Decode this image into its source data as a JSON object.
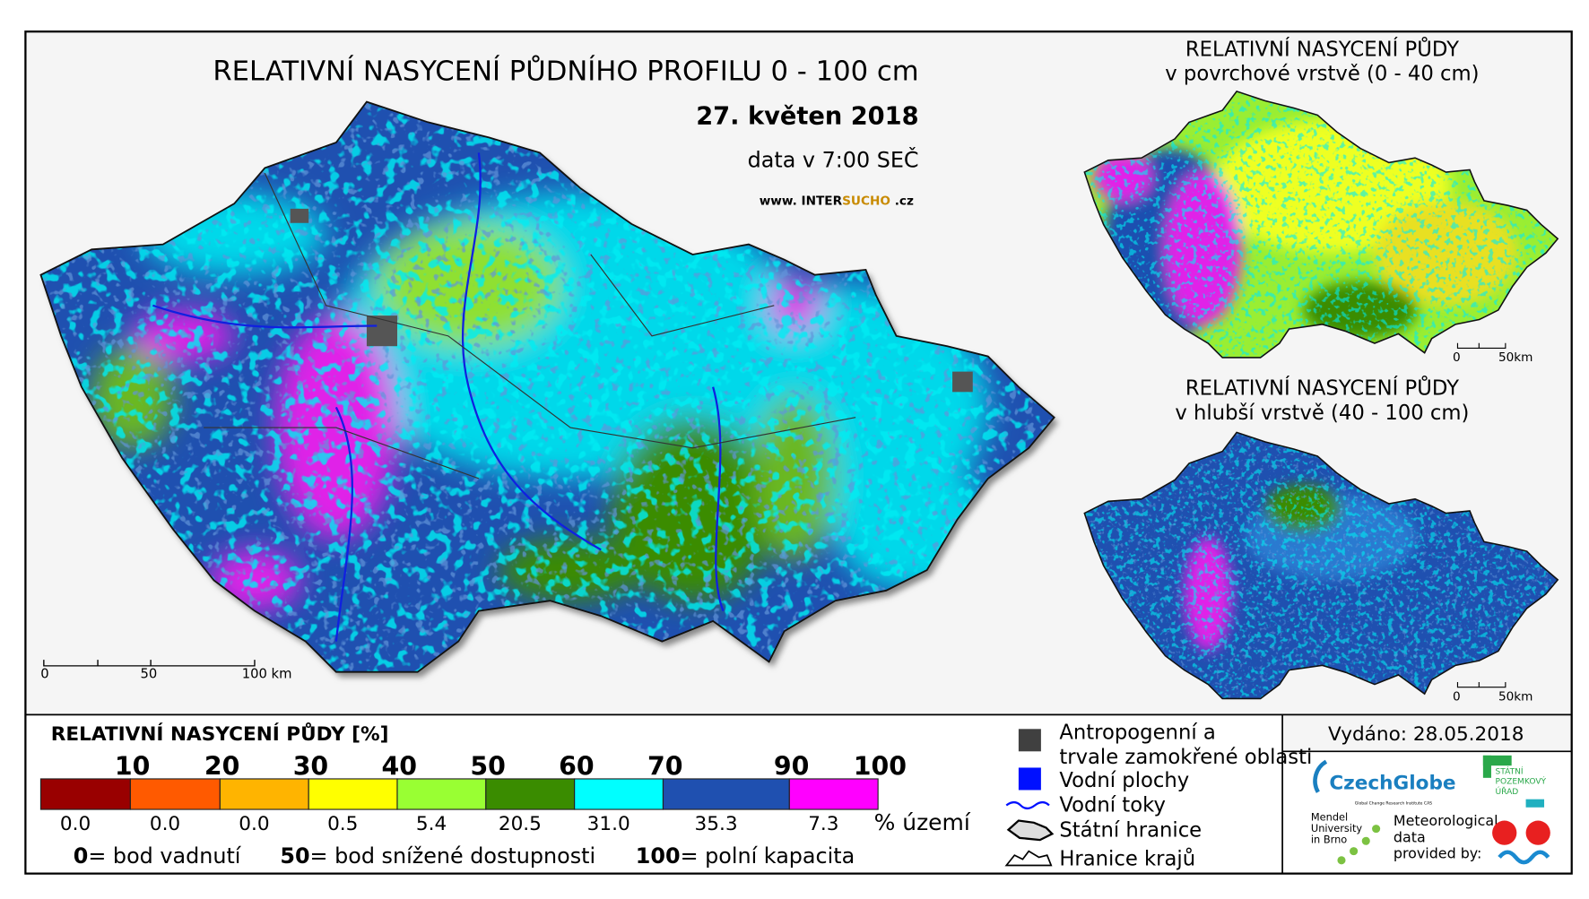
{
  "main_map": {
    "title": "RELATIVNÍ NASYCENÍ PŮDNÍHO PROFILU 0 - 100 cm",
    "date": "27. květen 2018",
    "time": "data v 7:00 SEČ",
    "website": {
      "prefix": "www. INTER",
      "highlight": "SUCHO",
      "suffix": " .cz"
    },
    "scale": [
      "0",
      "50",
      "100 km"
    ]
  },
  "inset_top": {
    "title_lines": [
      "RELATIVNÍ NASYCENÍ PŮDY",
      "v povrchové vrstvě (0 - 40 cm)"
    ],
    "scale": [
      "0",
      "50km"
    ]
  },
  "inset_bottom": {
    "title_lines": [
      "RELATIVNÍ NASYCENÍ PŮDY",
      "v hlubší vrstvě (40 - 100 cm)"
    ],
    "scale": [
      "0",
      "50km"
    ]
  },
  "legend": {
    "title": "RELATIVNÍ NASYCENÍ PŮDY [%]",
    "breaks": [
      "10",
      "20",
      "30",
      "40",
      "50",
      "60",
      "70",
      "90",
      "100"
    ],
    "classes": [
      {
        "color": "#990000",
        "share": "0.0"
      },
      {
        "color": "#ff5a00",
        "share": "0.0"
      },
      {
        "color": "#ffb400",
        "share": "0.0"
      },
      {
        "color": "#ffff00",
        "share": "0.5"
      },
      {
        "color": "#99ff33",
        "share": "5.4"
      },
      {
        "color": "#3a8c00",
        "share": "20.5"
      },
      {
        "color": "#00ffff",
        "share": "31.0"
      },
      {
        "color": "#1f50b0",
        "share": "35.3"
      },
      {
        "color": "#ff00ff",
        "share": "7.3"
      }
    ],
    "unit": "% území",
    "notes": [
      {
        "value": "0",
        "text": "= bod vadnutí"
      },
      {
        "value": "50",
        "text": "= bod snížené dostupnosti"
      },
      {
        "value": "100",
        "text": "= polní kapacita"
      }
    ]
  },
  "symbols": [
    "Antropogenní a trvale zamokřené oblasti",
    "Vodní plochy",
    "Vodní toky",
    "Státní hranice",
    "Hranice krajů"
  ],
  "issued": "Vydáno: 28.05.2018",
  "logos": {
    "czechglobe": "CzechGlobe",
    "czechglobe_sub": "Global Change Research Institute CAS",
    "spu": [
      "STÁTNÍ",
      "POZEMKOVÝ",
      "ÚŘAD"
    ],
    "mendel": [
      "Mendel",
      "University",
      "in Brno"
    ],
    "meteo": [
      "Meteorological",
      "data",
      "provided by:"
    ]
  }
}
